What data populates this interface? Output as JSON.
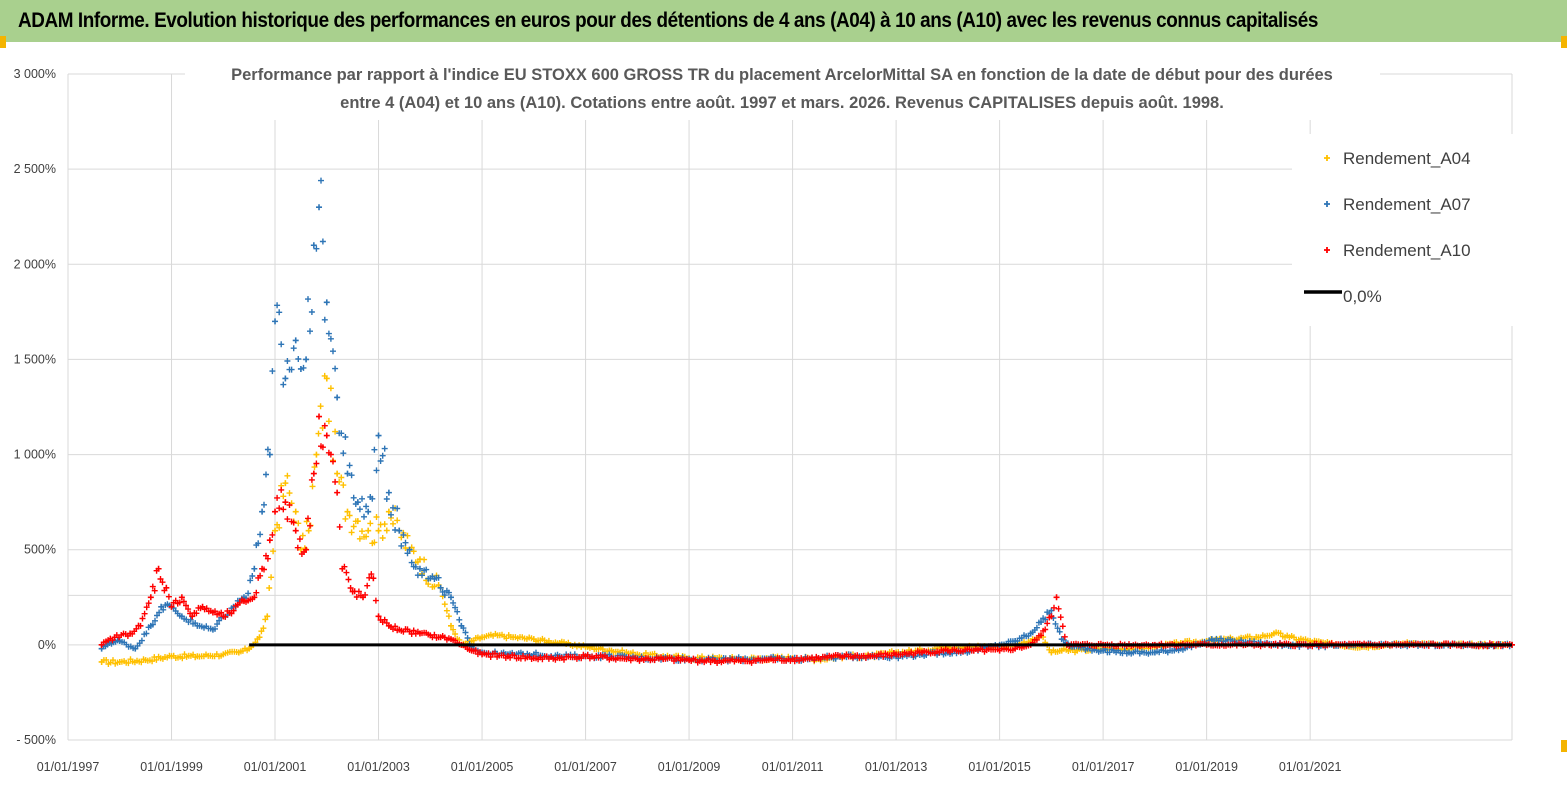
{
  "banner": {
    "title": "ADAM Informe. Evolution historique des performances en euros pour des détentions de 4 ans (A04) à 10 ans (A10) avec les revenus connus capitalisés"
  },
  "colors": {
    "banner_bg": "#a9d08e",
    "A04": "#ffc000",
    "A07": "#2e75b6",
    "A10": "#ff0000",
    "zero_line": "#000000",
    "grid": "#d9d9d9"
  },
  "chart_data": {
    "type": "scatter",
    "title_lines": [
      "Performance par rapport à l'indice EU STOXX 600 GROSS TR  du placement ArcelorMittal SA en fonction de la date de début pour des durées",
      "entre 4 (A04) et 10 ans (A10). Cotations entre août. 1997 et mars. 2026. Revenus CAPITALISES depuis août. 1998."
    ],
    "xlabel": "",
    "ylabel": "",
    "ylim": [
      -500,
      3000
    ],
    "xlim": [
      1997.0,
      2024.9
    ],
    "y_ticks": [
      {
        "value": -500,
        "label": "- 500%"
      },
      {
        "value": 0,
        "label": "0%"
      },
      {
        "value": 500,
        "label": "500%"
      },
      {
        "value": 1000,
        "label": "1 000%"
      },
      {
        "value": 1500,
        "label": "1 500%"
      },
      {
        "value": 2000,
        "label": "2 000%"
      },
      {
        "value": 2500,
        "label": "2 500%"
      },
      {
        "value": 3000,
        "label": "3 000%"
      }
    ],
    "x_ticks": [
      {
        "value": 1997,
        "label": "01/01/1997"
      },
      {
        "value": 1999,
        "label": "01/01/1999"
      },
      {
        "value": 2001,
        "label": "01/01/2001"
      },
      {
        "value": 2003,
        "label": "01/01/2003"
      },
      {
        "value": 2005,
        "label": "01/01/2005"
      },
      {
        "value": 2007,
        "label": "01/01/2007"
      },
      {
        "value": 2009,
        "label": "01/01/2009"
      },
      {
        "value": 2011,
        "label": "01/01/2011"
      },
      {
        "value": 2013,
        "label": "01/01/2013"
      },
      {
        "value": 2015,
        "label": "01/01/2015"
      },
      {
        "value": 2017,
        "label": "01/01/2017"
      },
      {
        "value": 2019,
        "label": "01/01/2019"
      },
      {
        "value": 2021,
        "label": "01/01/2021"
      }
    ],
    "grid": true,
    "legend": {
      "position": "top-right",
      "entries": [
        "Rendement_A04",
        "Rendement_A07",
        "Rendement_A10",
        "0,0%"
      ]
    },
    "series": [
      {
        "name": "Rendement_A04",
        "marker": "plus",
        "x": [
          1997.65,
          1998.0,
          1998.5,
          1999.0,
          1999.5,
          2000.0,
          2000.3,
          2000.5,
          2000.7,
          2000.85,
          2001.0,
          2001.2,
          2001.4,
          2001.5,
          2001.65,
          2001.8,
          2002.0,
          2002.2,
          2002.4,
          2002.6,
          2002.8,
          2003.0,
          2003.2,
          2003.4,
          2003.6,
          2003.8,
          2004.0,
          2004.2,
          2004.4,
          2004.6,
          2004.8,
          2005.0,
          2005.3,
          2005.6,
          2006.0,
          2006.5,
          2007.0,
          2007.5,
          2008.0,
          2008.5,
          2009.0,
          2009.5,
          2010.0,
          2010.5,
          2011.0,
          2011.5,
          2012.0,
          2012.5,
          2013.0,
          2013.5,
          2014.0,
          2014.5,
          2015.0,
          2015.3,
          2015.6,
          2015.8,
          2016.0,
          2016.2,
          2016.5,
          2017.0,
          2017.5,
          2018.0,
          2018.5,
          2019.0,
          2019.5,
          2020.0,
          2020.3,
          2020.6,
          2021.0,
          2021.5,
          2022.0,
          2022.5,
          2023.0,
          2023.5,
          2024.0,
          2024.5,
          2024.9
        ],
        "y": [
          -90,
          -90,
          -80,
          -60,
          -60,
          -50,
          -40,
          -20,
          40,
          150,
          600,
          850,
          700,
          500,
          600,
          1000,
          1400,
          900,
          700,
          650,
          600,
          600,
          700,
          600,
          500,
          450,
          350,
          300,
          100,
          0,
          20,
          40,
          50,
          40,
          30,
          10,
          -10,
          -30,
          -50,
          -60,
          -70,
          -70,
          -75,
          -70,
          -70,
          -75,
          -60,
          -60,
          -40,
          -30,
          -10,
          -10,
          -10,
          0,
          20,
          50,
          -40,
          -30,
          -30,
          -20,
          -20,
          -10,
          10,
          20,
          30,
          40,
          60,
          40,
          20,
          0,
          -10,
          0,
          10,
          0,
          0,
          0,
          0
        ]
      },
      {
        "name": "Rendement_A07",
        "marker": "plus",
        "x": [
          1997.65,
          1997.8,
          1998.0,
          1998.3,
          1998.6,
          1998.8,
          1999.0,
          1999.2,
          1999.5,
          1999.8,
          2000.0,
          2000.2,
          2000.4,
          2000.6,
          2000.75,
          2000.9,
          2001.0,
          2001.2,
          2001.4,
          2001.5,
          2001.6,
          2001.75,
          2001.85,
          2002.0,
          2002.2,
          2002.4,
          2002.6,
          2002.8,
          2003.0,
          2003.2,
          2003.4,
          2003.6,
          2003.8,
          2004.0,
          2004.2,
          2004.4,
          2004.6,
          2004.8,
          2005.0,
          2005.5,
          2006.0,
          2006.5,
          2007.0,
          2007.5,
          2008.0,
          2008.5,
          2009.0,
          2009.5,
          2010.0,
          2010.5,
          2011.0,
          2011.5,
          2012.0,
          2012.5,
          2013.0,
          2013.5,
          2014.0,
          2014.5,
          2015.0,
          2015.3,
          2015.6,
          2015.8,
          2016.0,
          2016.2,
          2016.4,
          2016.7,
          2017.0,
          2017.5,
          2018.0,
          2018.5,
          2019.0,
          2019.1,
          2019.5,
          2020.0,
          2020.5,
          2021.0,
          2021.5,
          2022.0,
          2022.5,
          2023.0,
          2023.5,
          2024.0,
          2024.5,
          2024.9
        ],
        "y": [
          -20,
          10,
          20,
          -20,
          100,
          200,
          200,
          150,
          100,
          80,
          150,
          200,
          250,
          400,
          700,
          1000,
          1700,
          1400,
          1600,
          1450,
          1500,
          2100,
          2300,
          1800,
          1300,
          900,
          750,
          700,
          1100,
          800,
          600,
          500,
          400,
          350,
          300,
          250,
          100,
          -10,
          -40,
          -50,
          -50,
          -60,
          -60,
          -60,
          -70,
          -70,
          -75,
          -80,
          -75,
          -75,
          -75,
          -70,
          -60,
          -60,
          -60,
          -50,
          -40,
          -30,
          0,
          20,
          60,
          120,
          180,
          30,
          -10,
          -20,
          -30,
          -40,
          -40,
          -20,
          10,
          30,
          20,
          10,
          0,
          -5,
          -5,
          0,
          0,
          0,
          0,
          0,
          0,
          0
        ]
      },
      {
        "name": "Rendement_A10",
        "marker": "plus",
        "x": [
          1997.65,
          1997.9,
          1998.2,
          1998.4,
          1998.6,
          1998.75,
          1998.9,
          1999.0,
          1999.2,
          1999.4,
          1999.6,
          1999.8,
          2000.0,
          2000.2,
          2000.4,
          2000.6,
          2000.75,
          2000.9,
          2001.0,
          2001.2,
          2001.4,
          2001.6,
          2001.75,
          2001.85,
          2002.0,
          2002.2,
          2002.3,
          2002.5,
          2002.7,
          2002.9,
          2003.0,
          2003.2,
          2003.4,
          2003.6,
          2003.8,
          2004.0,
          2004.2,
          2004.4,
          2004.6,
          2004.8,
          2005.0,
          2005.5,
          2006.0,
          2006.5,
          2007.0,
          2007.5,
          2008.0,
          2008.5,
          2009.0,
          2009.5,
          2010.0,
          2010.5,
          2011.0,
          2011.5,
          2012.0,
          2012.5,
          2013.0,
          2013.5,
          2014.0,
          2014.5,
          2015.0,
          2015.3,
          2015.6,
          2015.8,
          2016.0,
          2016.1,
          2016.3,
          2017.0,
          2018.0,
          2019.0,
          2020.0,
          2021.0,
          2022.0,
          2023.0,
          2024.0,
          2024.9
        ],
        "y": [
          0,
          40,
          60,
          100,
          250,
          400,
          300,
          200,
          250,
          150,
          200,
          170,
          150,
          180,
          230,
          250,
          400,
          550,
          700,
          750,
          600,
          500,
          900,
          1200,
          1100,
          800,
          400,
          280,
          250,
          350,
          150,
          100,
          80,
          70,
          60,
          50,
          40,
          30,
          0,
          -30,
          -50,
          -60,
          -70,
          -70,
          -60,
          -70,
          -75,
          -75,
          -80,
          -85,
          -85,
          -80,
          -75,
          -70,
          -60,
          -60,
          -50,
          -40,
          -30,
          -30,
          -30,
          -20,
          0,
          50,
          150,
          250,
          0,
          0,
          0,
          0,
          0,
          0,
          0,
          0,
          0,
          0
        ]
      }
    ],
    "reference_line": {
      "name": "0,0%",
      "y": 0
    }
  }
}
